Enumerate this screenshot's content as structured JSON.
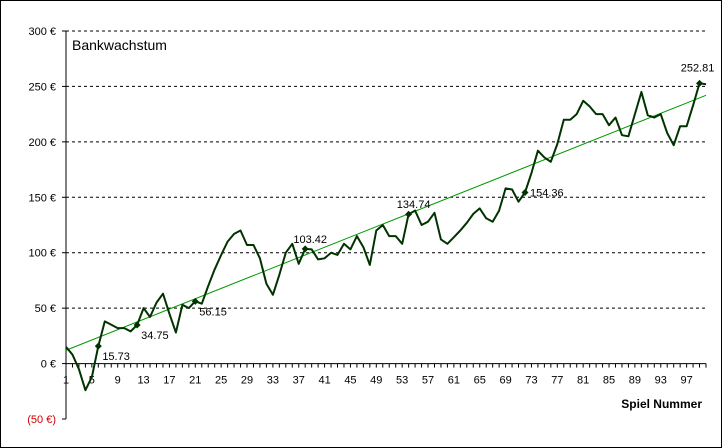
{
  "chart_data": {
    "type": "line",
    "title": "Bankwachstum",
    "xlabel": "Spiel Nummer",
    "ylabel": "",
    "ylim": [
      -50,
      300
    ],
    "xlim": [
      1,
      100
    ],
    "y_ticks": [
      {
        "value": 300,
        "label": "300 €"
      },
      {
        "value": 250,
        "label": "250 €"
      },
      {
        "value": 200,
        "label": "200 €"
      },
      {
        "value": 150,
        "label": "150 €"
      },
      {
        "value": 100,
        "label": "100 €"
      },
      {
        "value": 50,
        "label": "50 €"
      },
      {
        "value": 0,
        "label": "0 €"
      },
      {
        "value": -50,
        "label": "(50 €)"
      }
    ],
    "x_ticks": [
      1,
      5,
      9,
      13,
      17,
      21,
      25,
      29,
      33,
      37,
      41,
      45,
      49,
      53,
      57,
      61,
      65,
      69,
      73,
      77,
      81,
      85,
      89,
      93,
      97
    ],
    "grid": "horizontal dashed",
    "legend": "none",
    "colors": {
      "series": "#003300",
      "trend": "#009900",
      "negative_label": "#d00000"
    },
    "series": [
      {
        "x": [
          1,
          2,
          3,
          4,
          5,
          6,
          7,
          8,
          9,
          10,
          11,
          12,
          13,
          14,
          15,
          16,
          17,
          18,
          19,
          20,
          21,
          22,
          23,
          24,
          25,
          26,
          27,
          28,
          29,
          30,
          31,
          32,
          33,
          34,
          35,
          36,
          37,
          38,
          39,
          40,
          41,
          42,
          43,
          44,
          45,
          46,
          47,
          48,
          49,
          50,
          51,
          52,
          53,
          54,
          55,
          56,
          57,
          58,
          59,
          60,
          61,
          62,
          63,
          64,
          65,
          66,
          67,
          68,
          69,
          70,
          71,
          72,
          73,
          74,
          75,
          76,
          77,
          78,
          79,
          80,
          81,
          82,
          83,
          84,
          85,
          86,
          87,
          88,
          89,
          90,
          91,
          92,
          93,
          94,
          95,
          96,
          97,
          98,
          99,
          100
        ],
        "values": [
          15,
          8,
          -5,
          -24,
          -12,
          15.73,
          38,
          35,
          32,
          32,
          29,
          34.75,
          50,
          42,
          55,
          63,
          45,
          28,
          53,
          50,
          56.15,
          54,
          70,
          85,
          98,
          110,
          117,
          120,
          107,
          107,
          95,
          72,
          62,
          80,
          100,
          108,
          90,
          103.42,
          103,
          94,
          95,
          100,
          98,
          108,
          103,
          115,
          105,
          89,
          120,
          125,
          115,
          115,
          108,
          134.74,
          138,
          125,
          128,
          136,
          112,
          108,
          114,
          120,
          127,
          135,
          140,
          131,
          128,
          138,
          158,
          157,
          146,
          154.36,
          172,
          192,
          186,
          182,
          198,
          220,
          220,
          225,
          237,
          232,
          225,
          225,
          215,
          222,
          206,
          205,
          225,
          245,
          224,
          222,
          225,
          208,
          197,
          214,
          214,
          233,
          252.81,
          252
        ]
      }
    ],
    "trendline": {
      "from": [
        1,
        12
      ],
      "to": [
        100,
        242
      ]
    },
    "annotations": [
      {
        "x": 6,
        "y": 15.73,
        "text": "15.73"
      },
      {
        "x": 12,
        "y": 34.75,
        "text": "34.75"
      },
      {
        "x": 21,
        "y": 56.15,
        "text": "56.15"
      },
      {
        "x": 38,
        "y": 103.42,
        "text": "103.42"
      },
      {
        "x": 54,
        "y": 134.74,
        "text": "134.74"
      },
      {
        "x": 72,
        "y": 154.36,
        "text": "154.36"
      },
      {
        "x": 99,
        "y": 252.81,
        "text": "252.81"
      }
    ]
  }
}
